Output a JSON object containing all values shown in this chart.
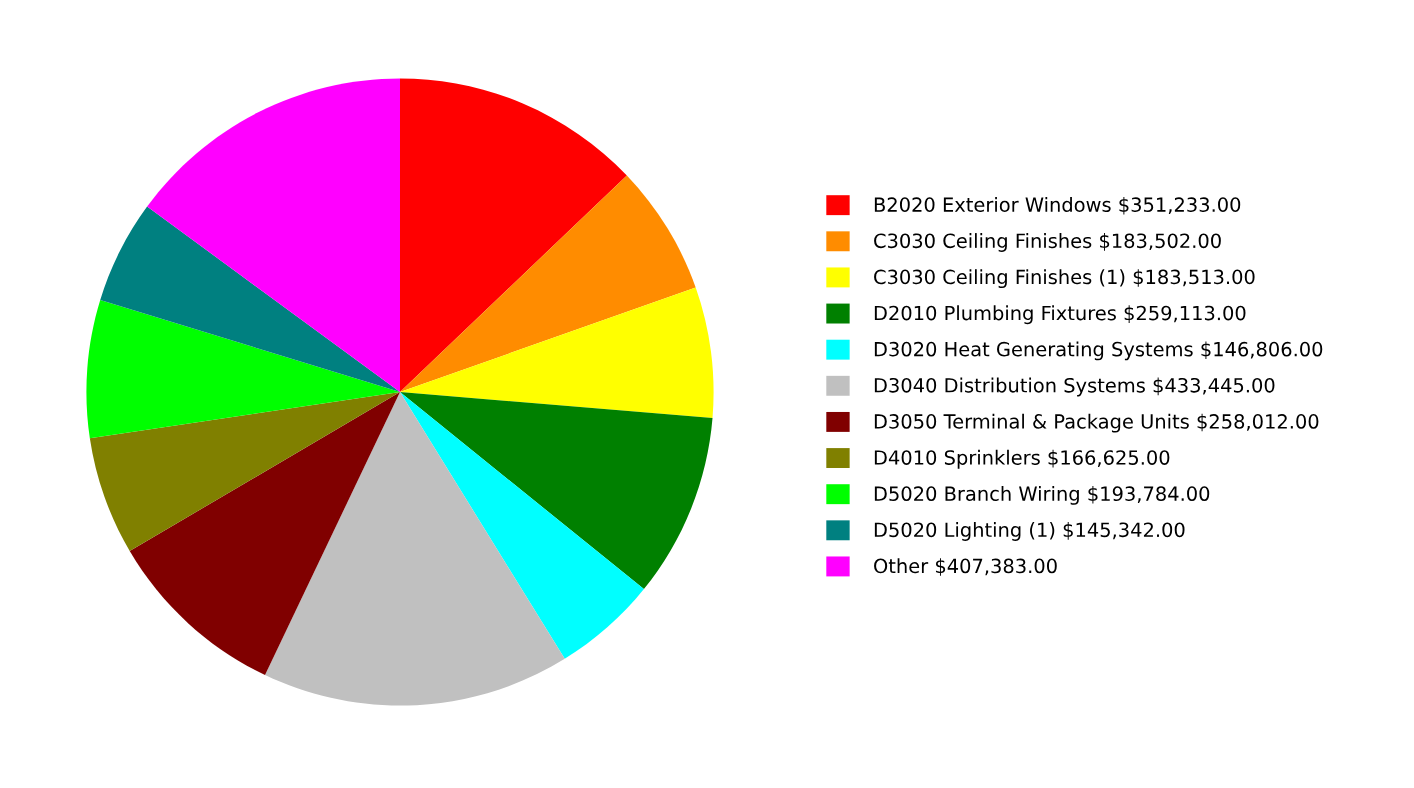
{
  "chart_data": {
    "type": "pie",
    "categories": [
      "B2020 Exterior Windows $351,233.00",
      "C3030 Ceiling Finishes $183,502.00",
      "C3030 Ceiling Finishes (1) $183,513.00",
      "D2010 Plumbing Fixtures $259,113.00",
      "D3020 Heat Generating Systems $146,806.00",
      "D3040 Distribution Systems $433,445.00",
      "D3050 Terminal & Package Units $258,012.00",
      "D4010 Sprinklers $166,625.00",
      "D5020 Branch Wiring $193,784.00",
      "D5020 Lighting (1) $145,342.00",
      "Other $407,383.00"
    ],
    "values": [
      351233,
      183502,
      183513,
      259113,
      146806,
      433445,
      258012,
      166625,
      193784,
      145342,
      407383
    ],
    "colors": [
      "#ff0000",
      "#ff8c00",
      "#ffff00",
      "#008000",
      "#00ffff",
      "#c0c0c0",
      "#800000",
      "#808000",
      "#00ff00",
      "#008080",
      "#ff00ff"
    ],
    "legend": "right"
  }
}
